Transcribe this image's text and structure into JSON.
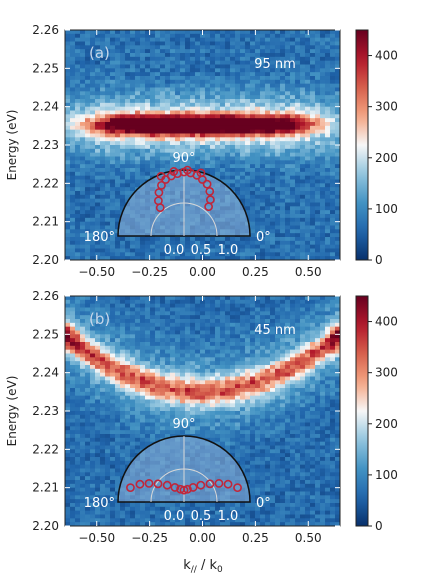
{
  "figure": {
    "xlabel": "k// / k0",
    "ylabel": "Energy (eV)",
    "colormap": [
      "#08306b",
      "#2166ac",
      "#4393c3",
      "#92c5de",
      "#f7f7f7",
      "#f4a582",
      "#d6604d",
      "#b2182b",
      "#67001f"
    ],
    "polar_marker_color": "#c0263a",
    "polar_fill": "#8fb3d8",
    "inset_text_color": "#ffffff",
    "panel_letter_color": "#c6d6ea"
  },
  "chart_data": [
    {
      "type": "heatmap",
      "panel_label": "(a)",
      "annotation": "95 nm",
      "xlim": [
        -0.65,
        0.65
      ],
      "ylim": [
        2.2,
        2.26
      ],
      "x_ticks": [
        "−0.50",
        "−0.25",
        "0.00",
        "0.25",
        "0.50"
      ],
      "x_tick_values": [
        -0.5,
        -0.25,
        0,
        0.25,
        0.5
      ],
      "y_ticks": [
        "2.20",
        "2.21",
        "2.22",
        "2.23",
        "2.24",
        "2.25",
        "2.26"
      ],
      "y_tick_values": [
        2.2,
        2.21,
        2.22,
        2.23,
        2.24,
        2.25,
        2.26
      ],
      "colorbar": {
        "min": 0,
        "max": 450,
        "ticks": [
          "0",
          "100",
          "200",
          "300",
          "400"
        ],
        "tick_values": [
          0,
          100,
          200,
          300,
          400
        ]
      },
      "background_level": 70,
      "bands": [
        {
          "energy_center": 2.2352,
          "energy_width": 0.0025,
          "k_center": 0.0,
          "k_width": 0.5,
          "peak": 440,
          "curvature": 0.0
        }
      ],
      "polar_inset": {
        "angle_labels": [
          "90°",
          "180°",
          "0°"
        ],
        "radial_labels": [
          "0.0",
          "0.5",
          "1.0"
        ],
        "points": [
          {
            "theta": 60,
            "r": 0.78
          },
          {
            "theta": 66,
            "r": 0.86
          },
          {
            "theta": 72,
            "r": 0.9
          },
          {
            "theta": 78,
            "r": 0.94
          },
          {
            "theta": 84,
            "r": 0.96
          },
          {
            "theta": 90,
            "r": 0.97
          },
          {
            "theta": 96,
            "r": 0.95
          },
          {
            "theta": 102,
            "r": 0.93
          },
          {
            "theta": 108,
            "r": 0.9
          },
          {
            "theta": 114,
            "r": 0.84
          },
          {
            "theta": 120,
            "r": 0.76
          },
          {
            "theta": 126,
            "r": 0.66
          },
          {
            "theta": 130,
            "r": 0.56
          },
          {
            "theta": 54,
            "r": 0.68
          },
          {
            "theta": 50,
            "r": 0.58
          },
          {
            "theta": 75,
            "r": 0.99
          },
          {
            "theta": 87,
            "r": 1.0
          },
          {
            "theta": 99,
            "r": 0.99
          },
          {
            "theta": 111,
            "r": 0.97
          }
        ]
      }
    },
    {
      "type": "heatmap",
      "panel_label": "(b)",
      "annotation": "45 nm",
      "xlim": [
        -0.65,
        0.65
      ],
      "ylim": [
        2.2,
        2.26
      ],
      "x_ticks": [
        "−0.50",
        "−0.25",
        "0.00",
        "0.25",
        "0.50"
      ],
      "x_tick_values": [
        -0.5,
        -0.25,
        0,
        0.25,
        0.5
      ],
      "y_ticks": [
        "2.20",
        "2.21",
        "2.22",
        "2.23",
        "2.24",
        "2.25",
        "2.26"
      ],
      "y_tick_values": [
        2.2,
        2.21,
        2.22,
        2.23,
        2.24,
        2.25,
        2.26
      ],
      "colorbar": {
        "min": 0,
        "max": 450,
        "ticks": [
          "0",
          "100",
          "200",
          "300",
          "400"
        ],
        "tick_values": [
          0,
          100,
          200,
          300,
          400
        ]
      },
      "background_level": 65,
      "bands": [
        {
          "energy_center": 2.235,
          "energy_width": 0.0035,
          "k_center": 0.0,
          "k_width": 2.0,
          "peak": 210,
          "curvature": 0.035,
          "edge_boost": 120
        }
      ],
      "polar_inset": {
        "angle_labels": [
          "90°",
          "180°",
          "0°"
        ],
        "radial_labels": [
          "0.0",
          "0.5",
          "1.0"
        ],
        "points": [
          {
            "theta": 15,
            "r": 0.84
          },
          {
            "theta": 22,
            "r": 0.72
          },
          {
            "theta": 28,
            "r": 0.6
          },
          {
            "theta": 35,
            "r": 0.48
          },
          {
            "theta": 45,
            "r": 0.36
          },
          {
            "theta": 58,
            "r": 0.26
          },
          {
            "theta": 75,
            "r": 0.2
          },
          {
            "theta": 90,
            "r": 0.18
          },
          {
            "theta": 105,
            "r": 0.2
          },
          {
            "theta": 122,
            "r": 0.26
          },
          {
            "theta": 135,
            "r": 0.36
          },
          {
            "theta": 145,
            "r": 0.48
          },
          {
            "theta": 152,
            "r": 0.6
          },
          {
            "theta": 158,
            "r": 0.72
          },
          {
            "theta": 165,
            "r": 0.84
          }
        ]
      }
    }
  ]
}
